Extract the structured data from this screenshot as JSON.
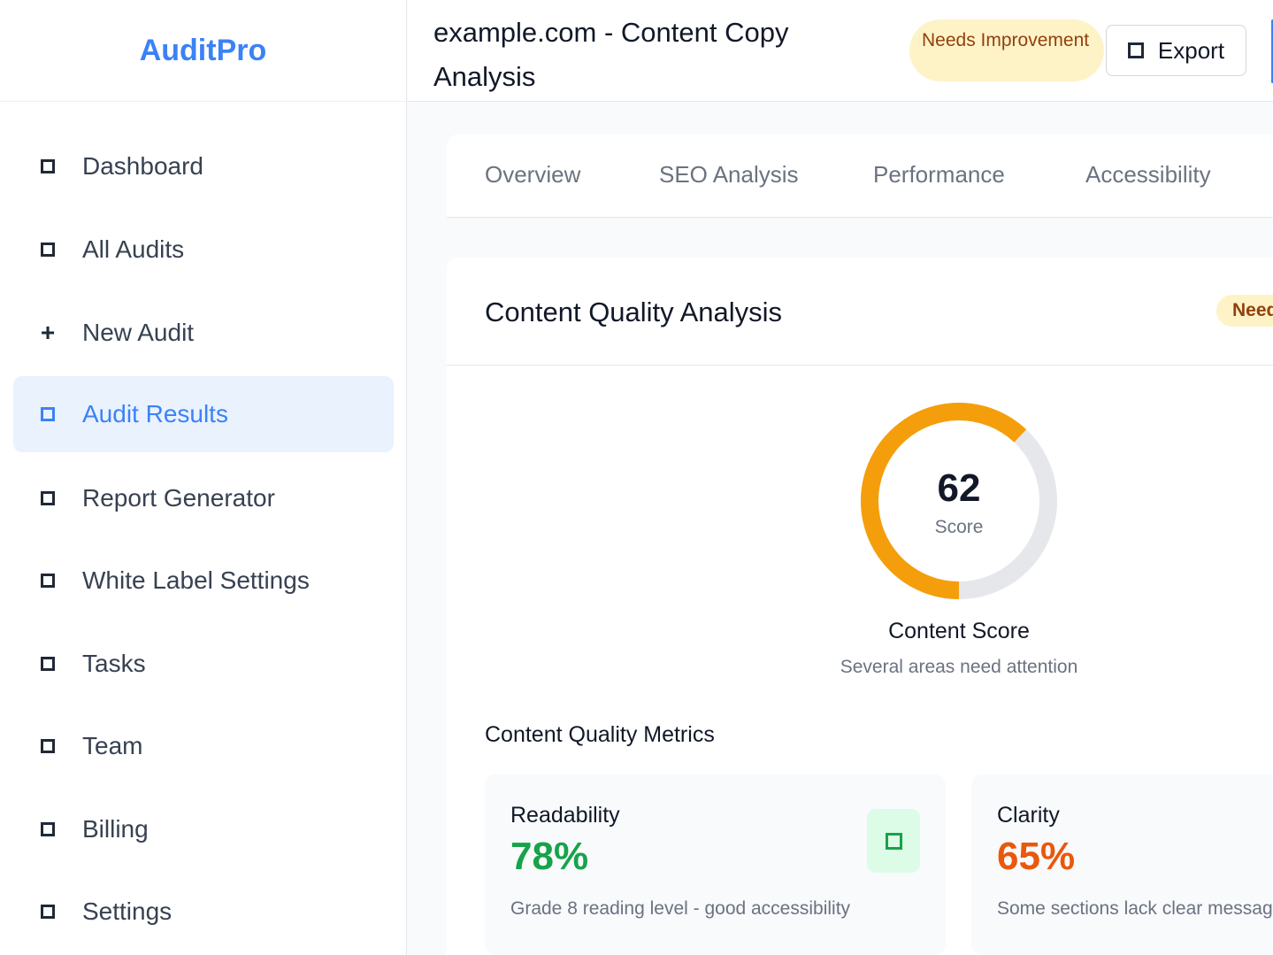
{
  "sidebar": {
    "logo": "AuditPro",
    "items": [
      {
        "label": "Dashboard",
        "icon": "square-icon"
      },
      {
        "label": "All Audits",
        "icon": "square-icon"
      },
      {
        "label": "New Audit",
        "icon": "plus-icon"
      },
      {
        "label": "Audit Results",
        "icon": "square-icon",
        "active": true
      },
      {
        "label": "Report Generator",
        "icon": "square-icon"
      },
      {
        "label": "White Label Settings",
        "icon": "square-icon"
      },
      {
        "label": "Tasks",
        "icon": "square-icon"
      },
      {
        "label": "Team",
        "icon": "square-icon"
      },
      {
        "label": "Billing",
        "icon": "square-icon"
      },
      {
        "label": "Settings",
        "icon": "square-icon"
      }
    ]
  },
  "header": {
    "title": "example.com - Content Copy Analysis",
    "status_badge": "Needs Improvement",
    "export_label": "Export"
  },
  "tabs": [
    "Overview",
    "SEO Analysis",
    "Performance",
    "Accessibility"
  ],
  "card": {
    "title": "Content Quality Analysis",
    "badge": "Needs Improvement",
    "score": {
      "value": "62",
      "label": "Score",
      "fraction": 0.62,
      "title": "Content Score",
      "subtitle": "Several areas need attention"
    },
    "metrics_title": "Content Quality Metrics",
    "metrics": [
      {
        "name": "Readability",
        "value": "78%",
        "description": "Grade 8 reading level - good accessibility",
        "color": "#16a34a"
      },
      {
        "name": "Clarity",
        "value": "65%",
        "description": "Some sections lack clear messaging",
        "color": "#ea580c"
      }
    ]
  },
  "colors": {
    "accent": "#3b82f6",
    "gauge_fill": "#f59e0b",
    "gauge_track": "#e5e7eb",
    "badge_bg": "#fef3c7",
    "badge_text": "#92400e"
  }
}
